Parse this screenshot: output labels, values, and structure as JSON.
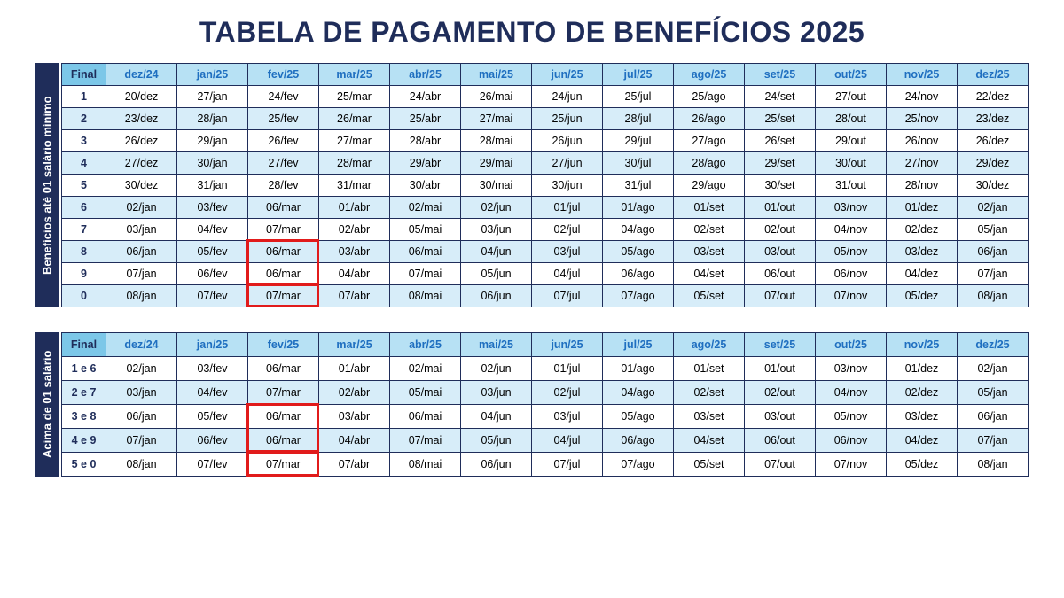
{
  "title": "TABELA DE PAGAMENTO DE BENEFÍCIOS 2025",
  "title_color": "#1f2d5a",
  "title_fontsize": 32,
  "colors": {
    "border": "#1f2d5a",
    "header_bg": "#b7e1f4",
    "header_text": "#1f6fc0",
    "final_bg": "#7cc7e8",
    "row_even_bg": "#ffffff",
    "row_odd_bg": "#d7edf9",
    "side_bg": "#1f2d5a",
    "highlight": "#e11b1b"
  },
  "layout": {
    "row_height_t1": 25,
    "row_height_t2": 27,
    "gap_between_tables": 28,
    "col_widths": {
      "final": 50,
      "month": 80
    }
  },
  "months": [
    "dez/24",
    "jan/25",
    "fev/25",
    "mar/25",
    "abr/25",
    "mai/25",
    "jun/25",
    "jul/25",
    "ago/25",
    "set/25",
    "out/25",
    "nov/25",
    "dez/25"
  ],
  "table1": {
    "side_label": "Benefícios até 01 salário mínimo",
    "final_header": "Final",
    "row_labels": [
      "1",
      "2",
      "3",
      "4",
      "5",
      "6",
      "7",
      "8",
      "9",
      "0"
    ],
    "rows": [
      [
        "20/dez",
        "27/jan",
        "24/fev",
        "25/mar",
        "24/abr",
        "26/mai",
        "24/jun",
        "25/jul",
        "25/ago",
        "24/set",
        "27/out",
        "24/nov",
        "22/dez"
      ],
      [
        "23/dez",
        "28/jan",
        "25/fev",
        "26/mar",
        "25/abr",
        "27/mai",
        "25/jun",
        "28/jul",
        "26/ago",
        "25/set",
        "28/out",
        "25/nov",
        "23/dez"
      ],
      [
        "26/dez",
        "29/jan",
        "26/fev",
        "27/mar",
        "28/abr",
        "28/mai",
        "26/jun",
        "29/jul",
        "27/ago",
        "26/set",
        "29/out",
        "26/nov",
        "26/dez"
      ],
      [
        "27/dez",
        "30/jan",
        "27/fev",
        "28/mar",
        "29/abr",
        "29/mai",
        "27/jun",
        "30/jul",
        "28/ago",
        "29/set",
        "30/out",
        "27/nov",
        "29/dez"
      ],
      [
        "30/dez",
        "31/jan",
        "28/fev",
        "31/mar",
        "30/abr",
        "30/mai",
        "30/jun",
        "31/jul",
        "29/ago",
        "30/set",
        "31/out",
        "28/nov",
        "30/dez"
      ],
      [
        "02/jan",
        "03/fev",
        "06/mar",
        "01/abr",
        "02/mai",
        "02/jun",
        "01/jul",
        "01/ago",
        "01/set",
        "01/out",
        "03/nov",
        "01/dez",
        "02/jan"
      ],
      [
        "03/jan",
        "04/fev",
        "07/mar",
        "02/abr",
        "05/mai",
        "03/jun",
        "02/jul",
        "04/ago",
        "02/set",
        "02/out",
        "04/nov",
        "02/dez",
        "05/jan"
      ],
      [
        "06/jan",
        "05/fev",
        "06/mar",
        "03/abr",
        "06/mai",
        "04/jun",
        "03/jul",
        "05/ago",
        "03/set",
        "03/out",
        "05/nov",
        "03/dez",
        "06/jan"
      ],
      [
        "07/jan",
        "06/fev",
        "06/mar",
        "04/abr",
        "07/mai",
        "05/jun",
        "04/jul",
        "06/ago",
        "04/set",
        "06/out",
        "06/nov",
        "04/dez",
        "07/jan"
      ],
      [
        "08/jan",
        "07/fev",
        "07/mar",
        "07/abr",
        "08/mai",
        "06/jun",
        "07/jul",
        "07/ago",
        "05/set",
        "07/out",
        "07/nov",
        "05/dez",
        "08/jan"
      ]
    ],
    "highlights": [
      {
        "row_start": 7,
        "row_span": 2,
        "col": 2
      },
      {
        "row_start": 9,
        "row_span": 1,
        "col": 2
      }
    ]
  },
  "table2": {
    "side_label": "Acima de 01 salário",
    "final_header": "Final",
    "row_labels": [
      "1 e 6",
      "2 e 7",
      "3 e 8",
      "4 e 9",
      "5 e 0"
    ],
    "rows": [
      [
        "02/jan",
        "03/fev",
        "06/mar",
        "01/abr",
        "02/mai",
        "02/jun",
        "01/jul",
        "01/ago",
        "01/set",
        "01/out",
        "03/nov",
        "01/dez",
        "02/jan"
      ],
      [
        "03/jan",
        "04/fev",
        "07/mar",
        "02/abr",
        "05/mai",
        "03/jun",
        "02/jul",
        "04/ago",
        "02/set",
        "02/out",
        "04/nov",
        "02/dez",
        "05/jan"
      ],
      [
        "06/jan",
        "05/fev",
        "06/mar",
        "03/abr",
        "06/mai",
        "04/jun",
        "03/jul",
        "05/ago",
        "03/set",
        "03/out",
        "05/nov",
        "03/dez",
        "06/jan"
      ],
      [
        "07/jan",
        "06/fev",
        "06/mar",
        "04/abr",
        "07/mai",
        "05/jun",
        "04/jul",
        "06/ago",
        "04/set",
        "06/out",
        "06/nov",
        "04/dez",
        "07/jan"
      ],
      [
        "08/jan",
        "07/fev",
        "07/mar",
        "07/abr",
        "08/mai",
        "06/jun",
        "07/jul",
        "07/ago",
        "05/set",
        "07/out",
        "07/nov",
        "05/dez",
        "08/jan"
      ]
    ],
    "highlights": [
      {
        "row_start": 2,
        "row_span": 2,
        "col": 2
      },
      {
        "row_start": 4,
        "row_span": 1,
        "col": 2
      }
    ]
  }
}
